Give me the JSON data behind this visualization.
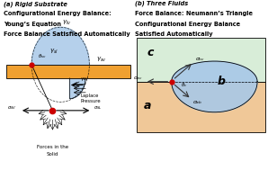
{
  "fig_width": 2.98,
  "fig_height": 1.89,
  "dpi": 100,
  "bg_color": "#ffffff",
  "panel_a": {
    "title_line1": "(a) Rigid Substrate",
    "title_line2": "Configurational Energy Balance:",
    "title_line3": "Young’s Equation",
    "title_line4": "Force Balance Satisfied Automatically",
    "substrate_color": "#f0a030",
    "drop_above_color": "#a8c8e8",
    "drop_below_color": "#a8c8e8",
    "contact_point_color": "#cc0000"
  },
  "panel_b": {
    "title_line1": "(b) Three Fluids",
    "title_line2": "Force Balance: Neumann’s Triangle",
    "title_line3": "Configurational Energy Balance",
    "title_line4": "Satisfied Automatically",
    "fluid_c_color": "#d8edd8",
    "fluid_a_color": "#f0c898",
    "fluid_b_color": "#a8c8e8",
    "contact_point_color": "#cc0000"
  }
}
